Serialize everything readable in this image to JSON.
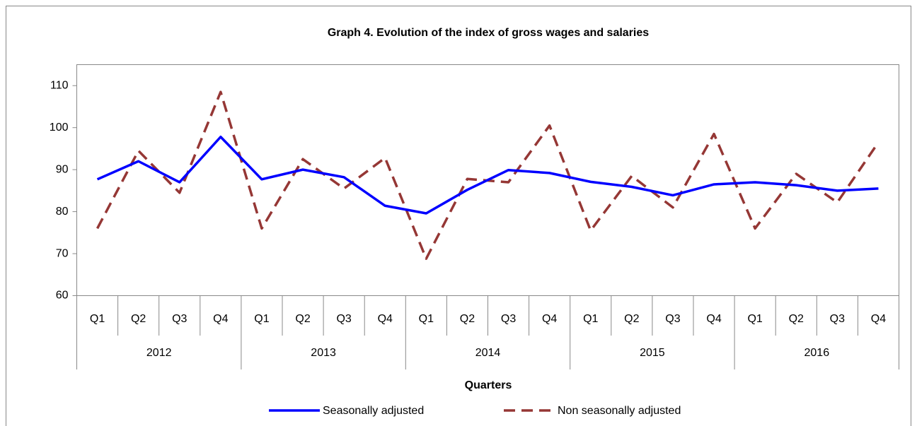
{
  "chart_data": {
    "type": "line",
    "title": "Graph 4. Evolution of the index of gross wages and salaries",
    "x_label": "Quarters",
    "categories": [
      "Q1",
      "Q2",
      "Q3",
      "Q4",
      "Q1",
      "Q2",
      "Q3",
      "Q4",
      "Q1",
      "Q2",
      "Q3",
      "Q4",
      "Q1",
      "Q2",
      "Q3",
      "Q4",
      "Q1",
      "Q2",
      "Q3",
      "Q4"
    ],
    "years": [
      "2012",
      "2013",
      "2014",
      "2015",
      "2016"
    ],
    "series": [
      {
        "name": "Seasonally adjusted",
        "color": "#0000ff",
        "dash": false,
        "values": [
          87.7,
          92,
          87,
          97.8,
          87.7,
          90,
          88.2,
          81.4,
          79.6,
          85.2,
          89.9,
          89.2,
          87.1,
          85.9,
          83.9,
          86.5,
          87,
          86.3,
          85,
          85.5
        ]
      },
      {
        "name": "Non seasonally adjusted",
        "color": "#953735",
        "dash": true,
        "values": [
          76,
          94.5,
          84.5,
          108.5,
          76,
          92.5,
          85.5,
          92.8,
          68.8,
          87.8,
          87,
          100.5,
          75.5,
          88.5,
          81,
          98.5,
          76,
          89,
          82.2,
          96.5
        ]
      }
    ],
    "ylim": [
      60,
      115
    ],
    "yticks": [
      60,
      70,
      80,
      90,
      100,
      110
    ],
    "grid": false
  }
}
